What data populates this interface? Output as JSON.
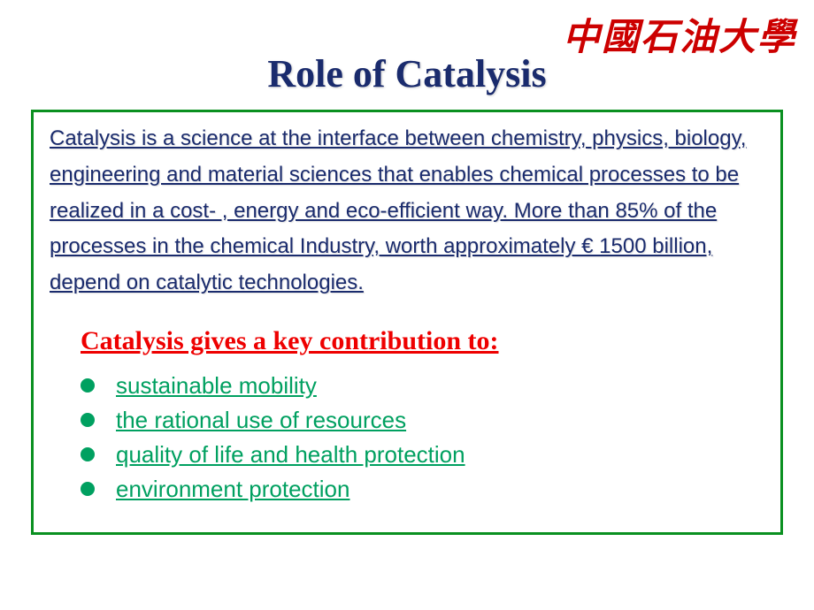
{
  "header": {
    "university_logo_text": "中國石油大學",
    "title": "Role of Catalysis"
  },
  "intro": {
    "paragraph": "  Catalysis is a science at the interface between chemistry, physics, biology, engineering and material sciences that enables chemical processes to be realized in a cost- , energy and eco-efficient way. More than 85% of the processes in the chemical Industry, worth approximately € 1500 billion, depend on catalytic technologies."
  },
  "sub_heading": "Catalysis gives a key contribution to:",
  "bullets": {
    "items": [
      {
        "text": "sustainable mobility"
      },
      {
        "text": "the rational use of resources"
      },
      {
        "text": "quality of life and health protection"
      },
      {
        "text": "environment protection"
      }
    ]
  },
  "styling": {
    "title_color": "#1a2b6d",
    "title_fontsize": 44,
    "intro_text_color": "#1a2b6d",
    "intro_fontsize": 24,
    "border_color": "#0a9020",
    "border_width": 3,
    "subheading_color": "#ee0000",
    "subheading_fontsize": 30,
    "bullet_color": "#00a060",
    "bullet_text_color": "#00a060",
    "bullet_fontsize": 26,
    "logo_color": "#cc0000",
    "logo_fontsize": 42,
    "background_color": "#ffffff"
  }
}
